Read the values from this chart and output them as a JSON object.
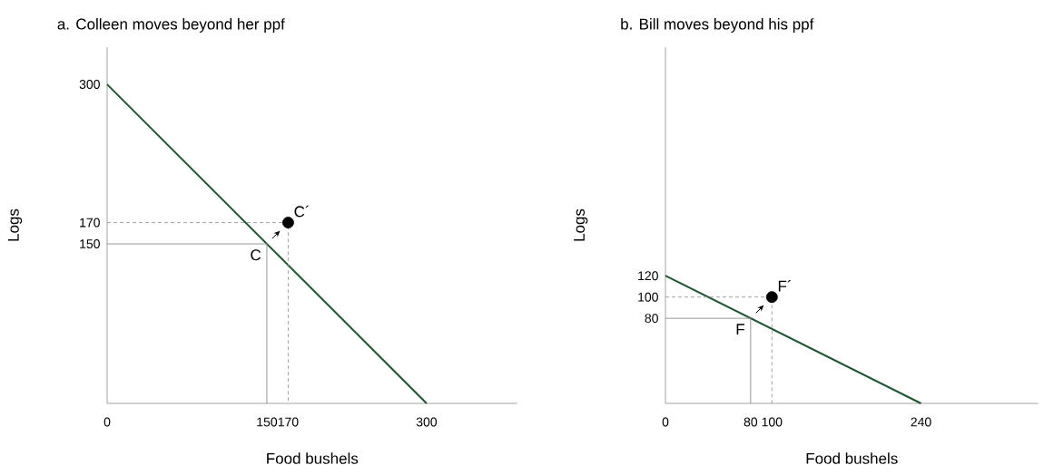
{
  "chart_data": [
    {
      "type": "line",
      "title": "a. Colleen moves beyond her ppf",
      "xlabel": "Food bushels",
      "ylabel": "Logs",
      "xlim": [
        0,
        385
      ],
      "ylim": [
        0,
        335
      ],
      "xticks": [
        0,
        150,
        170,
        300
      ],
      "yticks": [
        150,
        170,
        300
      ],
      "grid": false,
      "series": [
        {
          "color": "#1f5530",
          "line_style": "solid",
          "x": [
            0,
            300
          ],
          "values": [
            300,
            0
          ]
        },
        {
          "color": "#8c8c8c",
          "line_style": "solid",
          "x": [
            0,
            150,
            150
          ],
          "values": [
            150,
            150,
            0
          ]
        },
        {
          "color": "#9a9a9a",
          "line_style": "dashed",
          "x": [
            0,
            170,
            170
          ],
          "values": [
            170,
            170,
            0
          ]
        },
        {
          "type": "scatter",
          "color": "#000000",
          "marker": "circle",
          "x": [
            170
          ],
          "values": [
            170
          ]
        }
      ],
      "annotations": [
        {
          "text": "C",
          "x": 150,
          "y": 150
        },
        {
          "text": "C´",
          "x": 170,
          "y": 170
        }
      ]
    },
    {
      "type": "line",
      "title": "b. Bill moves beyond his ppf",
      "xlabel": "Food bushels",
      "ylabel": "Logs",
      "xlim": [
        0,
        350
      ],
      "ylim": [
        0,
        335
      ],
      "xticks": [
        0,
        80,
        100,
        240
      ],
      "yticks": [
        80,
        100,
        120
      ],
      "grid": false,
      "series": [
        {
          "color": "#1f5530",
          "line_style": "solid",
          "x": [
            0,
            240
          ],
          "values": [
            120,
            0
          ]
        },
        {
          "color": "#8c8c8c",
          "line_style": "solid",
          "x": [
            0,
            80,
            80
          ],
          "values": [
            80,
            80,
            0
          ]
        },
        {
          "color": "#9a9a9a",
          "line_style": "dashed",
          "x": [
            0,
            100,
            100
          ],
          "values": [
            100,
            100,
            0
          ]
        },
        {
          "type": "scatter",
          "color": "#000000",
          "marker": "circle",
          "x": [
            100
          ],
          "values": [
            100
          ]
        }
      ],
      "annotations": [
        {
          "text": "F",
          "x": 80,
          "y": 80
        },
        {
          "text": "F´",
          "x": 100,
          "y": 100
        }
      ]
    }
  ]
}
